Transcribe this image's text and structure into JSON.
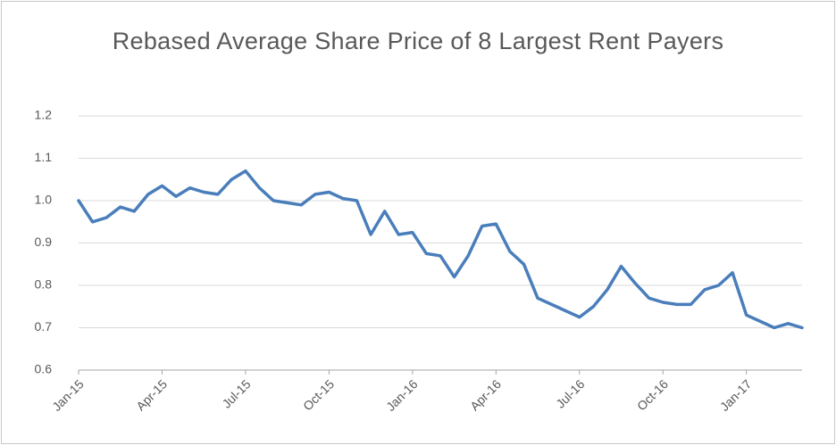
{
  "chart_data": {
    "type": "line",
    "title": "Rebased  Average Share Price of 8 Largest Rent Payers",
    "categories": [
      "Jan-15",
      null,
      null,
      null,
      null,
      null,
      "Apr-15",
      null,
      null,
      null,
      null,
      null,
      "Jul-15",
      null,
      null,
      null,
      null,
      null,
      "Oct-15",
      null,
      null,
      null,
      null,
      null,
      "Jan-16",
      null,
      null,
      null,
      null,
      null,
      "Apr-16",
      null,
      null,
      null,
      null,
      null,
      "Jul-16",
      null,
      null,
      null,
      null,
      null,
      "Oct-16",
      null,
      null,
      null,
      null,
      null,
      "Jan-17",
      null,
      null,
      null,
      null
    ],
    "series": [
      {
        "name": "Rebased Average Share Price",
        "color": "#4a7ebb",
        "values": [
          1.0,
          0.95,
          0.96,
          0.985,
          0.975,
          1.015,
          1.035,
          1.01,
          1.03,
          1.02,
          1.015,
          1.05,
          1.07,
          1.03,
          1.0,
          0.995,
          0.99,
          1.015,
          1.02,
          1.005,
          1.0,
          0.92,
          0.975,
          0.92,
          0.925,
          0.875,
          0.87,
          0.82,
          0.87,
          0.94,
          0.945,
          0.88,
          0.85,
          0.77,
          0.755,
          0.74,
          0.725,
          0.75,
          0.79,
          0.845,
          0.805,
          0.77,
          0.76,
          0.755,
          0.755,
          0.79,
          0.8,
          0.83,
          0.73,
          0.715,
          0.7,
          0.71,
          0.7
        ]
      }
    ],
    "ylim": [
      0.6,
      1.2
    ],
    "yticks": [
      0.6,
      0.7,
      0.8,
      0.9,
      {
        "value": 1,
        "label": "1.0"
      },
      1.1,
      1.2
    ],
    "grid": true
  }
}
